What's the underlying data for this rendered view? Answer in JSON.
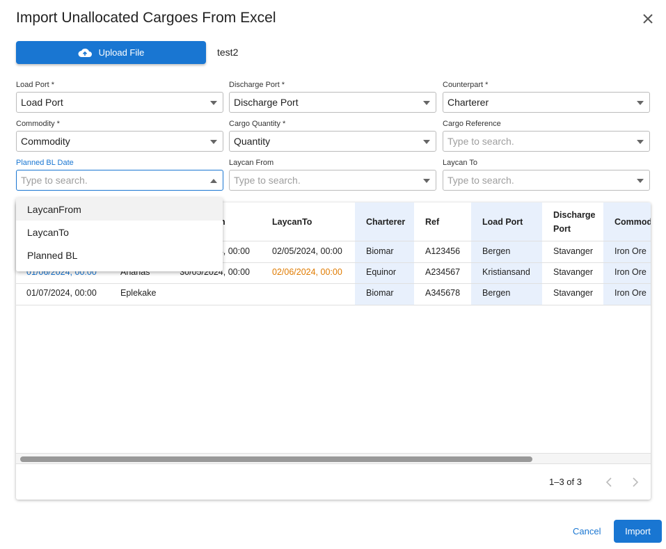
{
  "header": {
    "title": "Import Unallocated Cargoes From Excel"
  },
  "upload": {
    "button": "Upload File",
    "file_name": "test2"
  },
  "fields": [
    {
      "label": "Load Port *",
      "value": "Load Port"
    },
    {
      "label": "Discharge Port *",
      "value": "Discharge Port"
    },
    {
      "label": "Counterpart *",
      "value": "Charterer"
    },
    {
      "label": "Commodity *",
      "value": "Commodity"
    },
    {
      "label": "Cargo Quantity *",
      "value": "Quantity"
    },
    {
      "label": "Cargo Reference",
      "placeholder": "Type to search."
    },
    {
      "label": "Planned BL Date",
      "placeholder": "Type to search.",
      "focused": true
    },
    {
      "label": "Laycan From",
      "placeholder": "Type to search."
    },
    {
      "label": "Laycan To",
      "placeholder": "Type to search."
    }
  ],
  "dropdown": {
    "options": [
      "LaycanFrom",
      "LaycanTo",
      "Planned BL"
    ]
  },
  "table": {
    "columns": [
      null,
      null,
      "n",
      "LaycanTo",
      "Charterer",
      "Ref",
      "Load Port",
      "Discharge Port",
      "Commod"
    ],
    "rows": [
      [
        null,
        null,
        "4, 00:00",
        "02/05/2024, 00:00",
        "Biomar",
        "A123456",
        "Bergen",
        "Stavanger",
        "Iron Ore"
      ],
      [
        "01/06/2024, 00:00",
        "Ananas",
        "30/05/2024, 00:00",
        "02/06/2024, 00:00",
        "Equinor",
        "A234567",
        "Kristiansand",
        "Stavanger",
        "Iron Ore"
      ],
      [
        "01/07/2024, 00:00",
        "Eplekake",
        null,
        null,
        "Biomar",
        "A345678",
        "Bergen",
        "Stavanger",
        "Iron Ore"
      ]
    ],
    "highlights": [
      {
        "row": 1,
        "col": 0,
        "color": "#1976d2"
      },
      {
        "row": 1,
        "col": 3,
        "color": "#e07b00"
      }
    ]
  },
  "pagination": {
    "range": "1–3 of 3"
  },
  "actions": {
    "cancel": "Cancel",
    "import": "Import"
  }
}
